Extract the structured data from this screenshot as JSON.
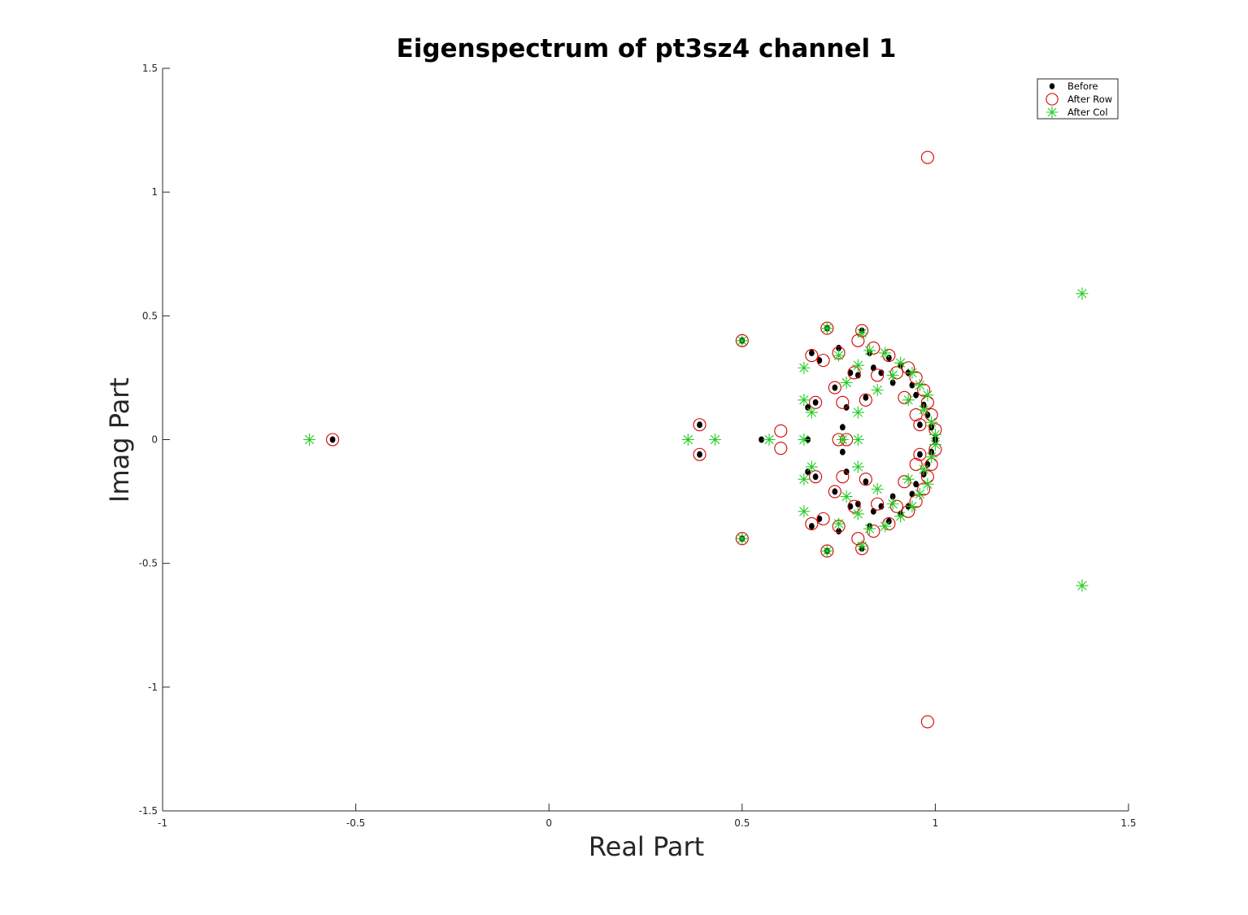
{
  "chart_data": {
    "type": "scatter",
    "title": "Eigenspectrum of pt3sz4 channel 1",
    "xlabel": "Real Part",
    "ylabel": "Imag Part",
    "xlim": [
      -1,
      1.5
    ],
    "ylim": [
      -1.5,
      1.5
    ],
    "xticks": [
      -1,
      -0.5,
      0,
      0.5,
      1,
      1.5
    ],
    "yticks": [
      -1.5,
      -1,
      -0.5,
      0,
      0.5,
      1,
      1.5
    ],
    "xtick_labels": [
      "-1",
      "-0.5",
      "0",
      "0.5",
      "1",
      "1.5"
    ],
    "ytick_labels": [
      "-1.5",
      "-1",
      "-0.5",
      "0",
      "0.5",
      "1",
      "1.5"
    ],
    "grid": false,
    "legend_position": "top-right",
    "series": [
      {
        "name": "Before",
        "marker": "filled-dot",
        "color": "#000000",
        "points": [
          [
            -0.56,
            0
          ],
          [
            0.39,
            0.06
          ],
          [
            0.39,
            -0.06
          ],
          [
            0.5,
            0.4
          ],
          [
            0.5,
            -0.4
          ],
          [
            0.55,
            0
          ],
          [
            0.67,
            0
          ],
          [
            0.67,
            0.13
          ],
          [
            0.67,
            -0.13
          ],
          [
            0.68,
            0.35
          ],
          [
            0.68,
            -0.35
          ],
          [
            0.69,
            0.15
          ],
          [
            0.69,
            -0.15
          ],
          [
            0.7,
            0.32
          ],
          [
            0.7,
            -0.32
          ],
          [
            0.72,
            0.45
          ],
          [
            0.72,
            -0.45
          ],
          [
            0.74,
            0.21
          ],
          [
            0.74,
            -0.21
          ],
          [
            0.75,
            0.37
          ],
          [
            0.75,
            -0.37
          ],
          [
            0.76,
            0.05
          ],
          [
            0.76,
            -0.05
          ],
          [
            0.77,
            0.13
          ],
          [
            0.77,
            -0.13
          ],
          [
            0.78,
            0.27
          ],
          [
            0.78,
            -0.27
          ],
          [
            0.8,
            0.26
          ],
          [
            0.8,
            -0.26
          ],
          [
            0.81,
            0.44
          ],
          [
            0.81,
            -0.44
          ],
          [
            0.82,
            0.17
          ],
          [
            0.82,
            -0.17
          ],
          [
            0.83,
            0.35
          ],
          [
            0.83,
            -0.35
          ],
          [
            0.84,
            0.29
          ],
          [
            0.84,
            -0.29
          ],
          [
            0.86,
            0.27
          ],
          [
            0.86,
            -0.27
          ],
          [
            0.88,
            0.33
          ],
          [
            0.88,
            -0.33
          ],
          [
            0.89,
            0.23
          ],
          [
            0.89,
            -0.23
          ],
          [
            0.91,
            0.3
          ],
          [
            0.91,
            -0.3
          ],
          [
            0.93,
            0.27
          ],
          [
            0.93,
            -0.27
          ],
          [
            0.94,
            0.22
          ],
          [
            0.94,
            -0.22
          ],
          [
            0.95,
            0.18
          ],
          [
            0.95,
            -0.18
          ],
          [
            0.96,
            0.06
          ],
          [
            0.96,
            -0.06
          ],
          [
            0.97,
            0.14
          ],
          [
            0.97,
            -0.14
          ],
          [
            0.98,
            0.1
          ],
          [
            0.98,
            -0.1
          ],
          [
            0.99,
            0.05
          ],
          [
            0.99,
            -0.05
          ],
          [
            1.0,
            0
          ]
        ]
      },
      {
        "name": "After Row",
        "marker": "open-circle",
        "color": "#d40000",
        "points": [
          [
            -0.56,
            0
          ],
          [
            0.39,
            0.06
          ],
          [
            0.39,
            -0.06
          ],
          [
            0.5,
            0.4
          ],
          [
            0.5,
            -0.4
          ],
          [
            0.6,
            0.035
          ],
          [
            0.6,
            -0.035
          ],
          [
            0.68,
            0.34
          ],
          [
            0.68,
            -0.34
          ],
          [
            0.69,
            0.15
          ],
          [
            0.69,
            -0.15
          ],
          [
            0.71,
            0.32
          ],
          [
            0.71,
            -0.32
          ],
          [
            0.72,
            0.45
          ],
          [
            0.72,
            -0.45
          ],
          [
            0.74,
            0.21
          ],
          [
            0.74,
            -0.21
          ],
          [
            0.75,
            0.35
          ],
          [
            0.75,
            -0.35
          ],
          [
            0.75,
            0
          ],
          [
            0.76,
            0.15
          ],
          [
            0.76,
            -0.15
          ],
          [
            0.77,
            0
          ],
          [
            0.79,
            0.27
          ],
          [
            0.79,
            -0.27
          ],
          [
            0.8,
            0.4
          ],
          [
            0.8,
            -0.4
          ],
          [
            0.81,
            0.44
          ],
          [
            0.81,
            -0.44
          ],
          [
            0.82,
            0.16
          ],
          [
            0.82,
            -0.16
          ],
          [
            0.84,
            0.37
          ],
          [
            0.84,
            -0.37
          ],
          [
            0.85,
            0.26
          ],
          [
            0.85,
            -0.26
          ],
          [
            0.88,
            0.34
          ],
          [
            0.88,
            -0.34
          ],
          [
            0.9,
            0.27
          ],
          [
            0.9,
            -0.27
          ],
          [
            0.92,
            0.17
          ],
          [
            0.92,
            -0.17
          ],
          [
            0.93,
            0.29
          ],
          [
            0.93,
            -0.29
          ],
          [
            0.95,
            0.1
          ],
          [
            0.95,
            -0.1
          ],
          [
            0.95,
            0.25
          ],
          [
            0.95,
            -0.25
          ],
          [
            0.96,
            0.06
          ],
          [
            0.96,
            -0.06
          ],
          [
            0.97,
            0.2
          ],
          [
            0.97,
            -0.2
          ],
          [
            0.98,
            0.15
          ],
          [
            0.98,
            -0.15
          ],
          [
            0.99,
            0.1
          ],
          [
            0.99,
            -0.1
          ],
          [
            1.0,
            0.04
          ],
          [
            1.0,
            -0.04
          ],
          [
            0.98,
            1.14
          ],
          [
            0.98,
            -1.14
          ]
        ]
      },
      {
        "name": "After Col",
        "marker": "asterisk",
        "color": "#22cc22",
        "points": [
          [
            -0.62,
            0
          ],
          [
            0.36,
            0
          ],
          [
            0.43,
            0
          ],
          [
            0.5,
            0.4
          ],
          [
            0.5,
            -0.4
          ],
          [
            0.57,
            0
          ],
          [
            0.66,
            0
          ],
          [
            0.66,
            0.16
          ],
          [
            0.66,
            -0.16
          ],
          [
            0.66,
            0.29
          ],
          [
            0.66,
            -0.29
          ],
          [
            0.68,
            0.11
          ],
          [
            0.68,
            -0.11
          ],
          [
            0.72,
            0.45
          ],
          [
            0.72,
            -0.45
          ],
          [
            0.75,
            0.34
          ],
          [
            0.75,
            -0.34
          ],
          [
            0.76,
            0
          ],
          [
            0.77,
            0.23
          ],
          [
            0.77,
            -0.23
          ],
          [
            0.8,
            0.11
          ],
          [
            0.8,
            -0.11
          ],
          [
            0.8,
            0
          ],
          [
            0.8,
            0.3
          ],
          [
            0.8,
            -0.3
          ],
          [
            0.81,
            0.43
          ],
          [
            0.81,
            -0.43
          ],
          [
            0.83,
            0.36
          ],
          [
            0.83,
            -0.36
          ],
          [
            0.85,
            0.2
          ],
          [
            0.85,
            -0.2
          ],
          [
            0.87,
            0.35
          ],
          [
            0.87,
            -0.35
          ],
          [
            0.89,
            0.26
          ],
          [
            0.89,
            -0.26
          ],
          [
            0.91,
            0.31
          ],
          [
            0.91,
            -0.31
          ],
          [
            0.93,
            0.16
          ],
          [
            0.93,
            -0.16
          ],
          [
            0.94,
            0.27
          ],
          [
            0.94,
            -0.27
          ],
          [
            0.96,
            0.22
          ],
          [
            0.96,
            -0.22
          ],
          [
            0.97,
            0.12
          ],
          [
            0.97,
            -0.12
          ],
          [
            0.98,
            0.18
          ],
          [
            0.98,
            -0.18
          ],
          [
            0.99,
            0.07
          ],
          [
            0.99,
            -0.07
          ],
          [
            1.0,
            0.02
          ],
          [
            1.0,
            -0.02
          ],
          [
            1.38,
            0.59
          ],
          [
            1.38,
            -0.59
          ]
        ]
      }
    ]
  }
}
